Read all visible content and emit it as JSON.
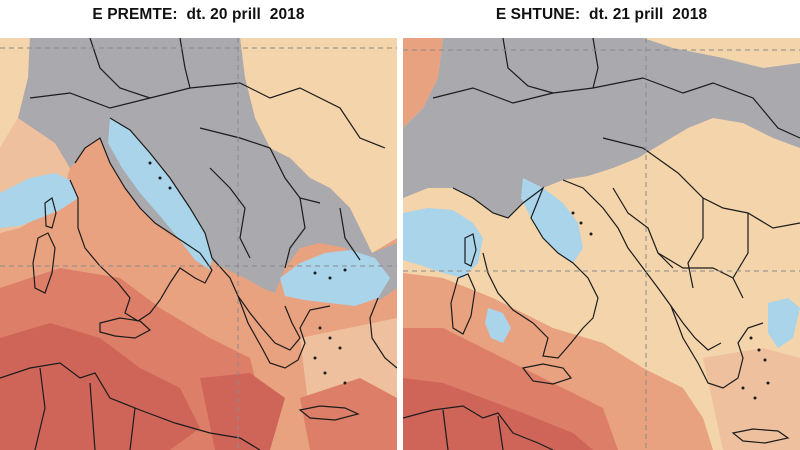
{
  "panels": [
    {
      "id": "left",
      "title": "E PREMTE:  dt. 20 prill  2018"
    },
    {
      "id": "right",
      "title": "E SHTUNE:  dt. 21 prill  2018"
    }
  ],
  "colors": {
    "land_mask": "#a9a9ae",
    "sea_mask": "#a9d4ea",
    "very_low": "#f3d4ab",
    "low": "#eec09d",
    "medium": "#e9a27f",
    "high": "#dd7e68",
    "very_high": "#cf6559",
    "borders": "#1c1c1c",
    "grid_lines": "#8a8a8a"
  }
}
